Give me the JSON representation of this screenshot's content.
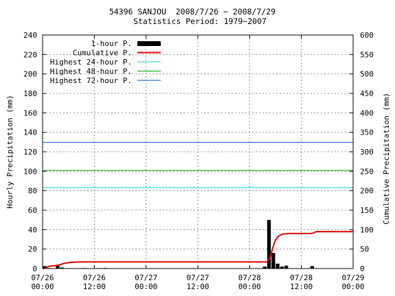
{
  "chart_data": {
    "type": "bar+line",
    "title": "54396 SANJOU  2008/7/26 ~ 2008/7/29",
    "subtitle": "Statistics Period: 1979~2007",
    "ylabel_left": "Hourly Precipitation (mm)",
    "ylabel_right": "Cumulative Precipitation (mm)",
    "ylim_left": [
      0,
      240
    ],
    "ylim_right": [
      0,
      600
    ],
    "yticks_left": [
      "0",
      "20",
      "40",
      "60",
      "80",
      "100",
      "120",
      "140",
      "160",
      "180",
      "200",
      "220",
      "240"
    ],
    "yticks_right": [
      "0",
      "50",
      "100",
      "150",
      "200",
      "250",
      "300",
      "350",
      "400",
      "450",
      "500",
      "550",
      "600"
    ],
    "x_range_hours": [
      0,
      72
    ],
    "xticks": [
      {
        "date": "07/26",
        "time": "00:00"
      },
      {
        "date": "07/26",
        "time": "12:00"
      },
      {
        "date": "07/27",
        "time": "00:00"
      },
      {
        "date": "07/27",
        "time": "12:00"
      },
      {
        "date": "07/28",
        "time": "00:00"
      },
      {
        "date": "07/28",
        "time": "12:00"
      },
      {
        "date": "07/29",
        "time": "00:00"
      }
    ],
    "grid": true,
    "legend_position": "top-left",
    "legend": [
      {
        "label": "1-hour P.",
        "color": "#000000",
        "kind": "bar"
      },
      {
        "label": "Cumulative P.",
        "color": "#e00000",
        "kind": "line"
      },
      {
        "label": "Highest 24-hour P.",
        "color": "#40d8d8",
        "kind": "line"
      },
      {
        "label": "Highest 48-hour P.",
        "color": "#20b020",
        "kind": "line"
      },
      {
        "label": "Highest 72-hour P.",
        "color": "#2878d0",
        "kind": "line"
      }
    ],
    "hourly_bars": [
      {
        "hour": 1,
        "value": 2.5
      },
      {
        "hour": 2,
        "value": 0.5
      },
      {
        "hour": 4,
        "value": 4
      },
      {
        "hour": 5,
        "value": 1
      },
      {
        "hour": 10,
        "value": 0.5
      },
      {
        "hour": 15,
        "value": 0.5
      },
      {
        "hour": 52,
        "value": 2
      },
      {
        "hour": 53,
        "value": 50
      },
      {
        "hour": 54,
        "value": 16
      },
      {
        "hour": 55,
        "value": 5
      },
      {
        "hour": 56,
        "value": 2
      },
      {
        "hour": 57,
        "value": 3
      },
      {
        "hour": 63,
        "value": 2.5
      }
    ],
    "cumulative": {
      "x": [
        0,
        0.8,
        1.5,
        3.5,
        5,
        6.5,
        9,
        52,
        52.8,
        53.3,
        53.8,
        54.3,
        54.8,
        55.5,
        57,
        62.5,
        63.5,
        72
      ],
      "y": [
        0,
        2,
        6,
        8,
        13,
        16,
        17,
        17,
        30,
        50,
        68,
        78,
        84,
        88,
        90,
        90,
        95,
        95
      ]
    },
    "highest_24h": 208,
    "highest_48h": 252,
    "highest_72h": 324
  }
}
